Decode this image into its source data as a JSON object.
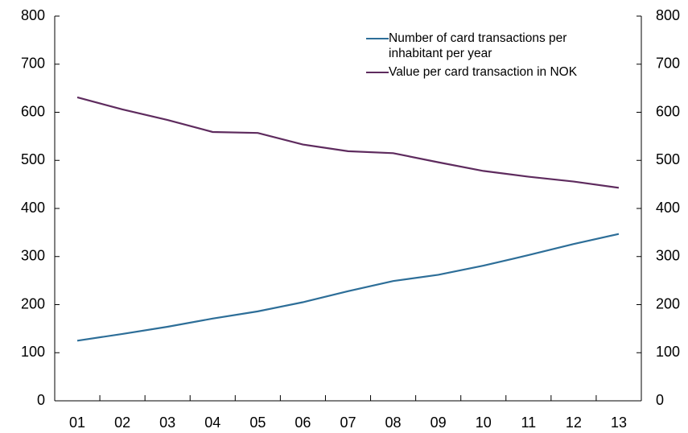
{
  "chart_data": {
    "type": "line",
    "categories": [
      "01",
      "02",
      "03",
      "04",
      "05",
      "06",
      "07",
      "08",
      "09",
      "10",
      "11",
      "12",
      "13"
    ],
    "series": [
      {
        "name": "Number of card transactions per inhabitant per year",
        "color": "#2d6e98",
        "values": [
          125,
          139,
          154,
          171,
          186,
          205,
          228,
          249,
          262,
          281,
          303,
          326,
          347
        ]
      },
      {
        "name": "Value per card transaction in NOK",
        "color": "#5e2b5e",
        "values": [
          631,
          606,
          584,
          559,
          557,
          533,
          519,
          515,
          496,
          478,
          466,
          456,
          443
        ]
      }
    ],
    "ylim": [
      0,
      800
    ],
    "yticks": [
      0,
      100,
      200,
      300,
      400,
      500,
      600,
      700,
      800
    ],
    "y2lim": [
      0,
      800
    ],
    "y2ticks": [
      0,
      100,
      200,
      300,
      400,
      500,
      600,
      700,
      800
    ],
    "grid": false,
    "legend": "upper right"
  }
}
